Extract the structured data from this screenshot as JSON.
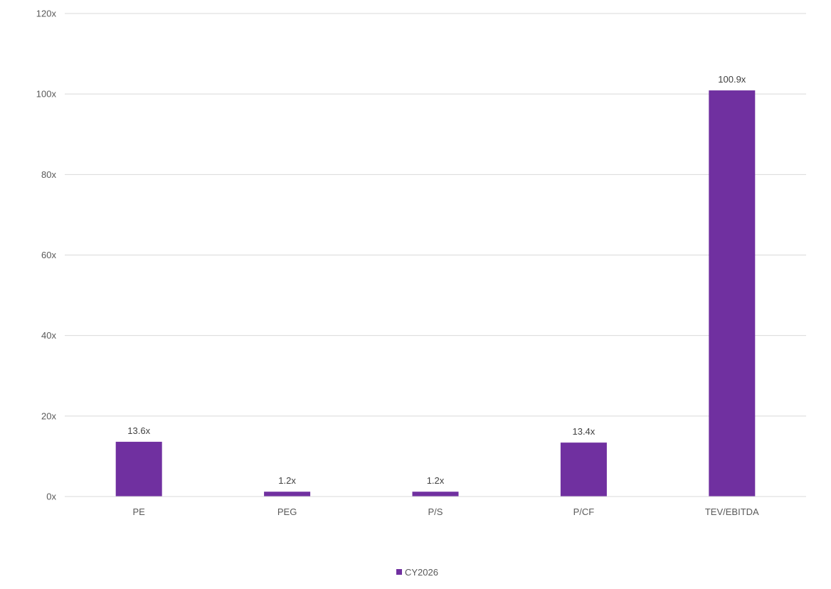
{
  "chart_data": {
    "type": "bar",
    "categories": [
      "PE",
      "PEG",
      "P/S",
      "P/CF",
      "TEV/EBITDA"
    ],
    "series": [
      {
        "name": "CY2026",
        "values": [
          13.6,
          1.2,
          1.2,
          13.4,
          100.9
        ],
        "labels": [
          "13.6x",
          "1.2x",
          "1.2x",
          "13.4x",
          "100.9x"
        ],
        "color": "#7030A0"
      }
    ],
    "ylim": [
      0,
      120
    ],
    "yticks": [
      0,
      20,
      40,
      60,
      80,
      100,
      120
    ],
    "ytick_labels": [
      "0x",
      "20x",
      "40x",
      "60x",
      "80x",
      "100x",
      "120x"
    ],
    "grid": true,
    "legend_position": "bottom",
    "title": "",
    "xlabel": "",
    "ylabel": ""
  }
}
